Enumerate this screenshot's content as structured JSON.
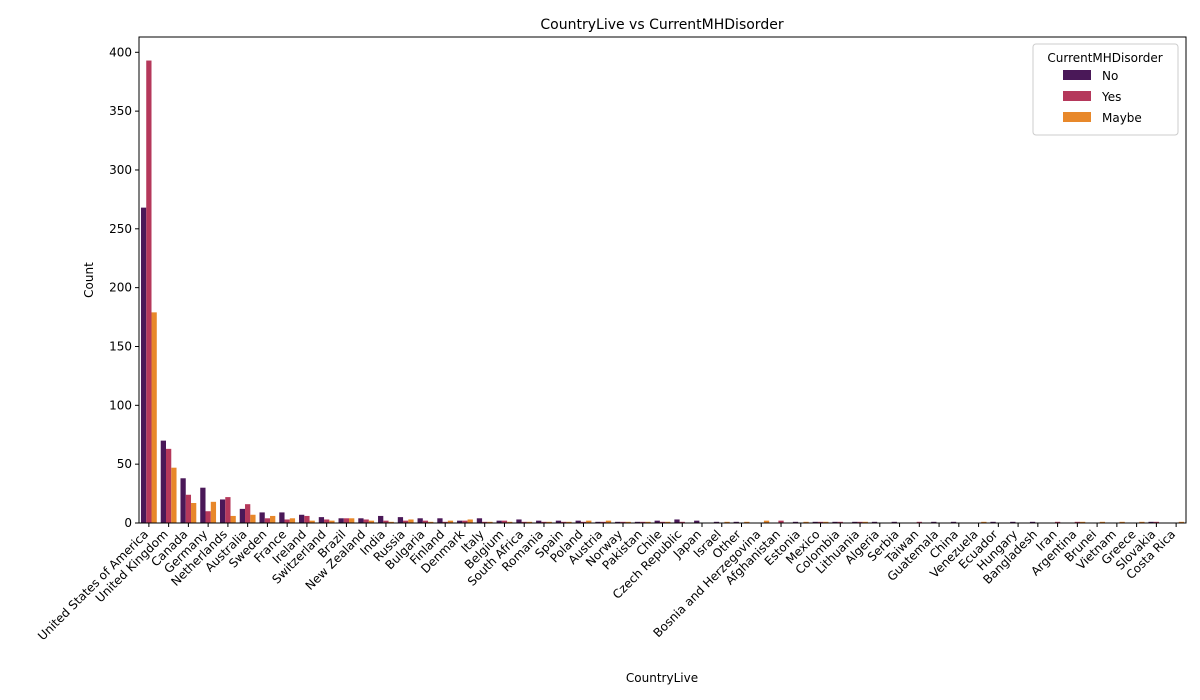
{
  "chart_data": {
    "type": "bar",
    "title": "CountryLive vs CurrentMHDisorder",
    "xlabel": "CountryLive",
    "ylabel": "Count",
    "ylim": [
      0,
      413
    ],
    "yticks": [
      0,
      50,
      100,
      150,
      200,
      250,
      300,
      350,
      400
    ],
    "legend": {
      "title": "CurrentMHDisorder",
      "placement": "top-right"
    },
    "grid": false,
    "categories": [
      "United States of America",
      "United Kingdom",
      "Canada",
      "Germany",
      "Netherlands",
      "Australia",
      "Sweden",
      "France",
      "Ireland",
      "Switzerland",
      "Brazil",
      "New Zealand",
      "India",
      "Russia",
      "Bulgaria",
      "Finland",
      "Denmark",
      "Italy",
      "Belgium",
      "South Africa",
      "Romania",
      "Spain",
      "Poland",
      "Austria",
      "Norway",
      "Pakistan",
      "Chile",
      "Czech Republic",
      "Japan",
      "Israel",
      "Other",
      "Bosnia and Herzegovina",
      "Afghanistan",
      "Estonia",
      "Mexico",
      "Colombia",
      "Lithuania",
      "Algeria",
      "Serbia",
      "Taiwan",
      "Guatemala",
      "China",
      "Venezuela",
      "Ecuador",
      "Hungary",
      "Bangladesh",
      "Iran",
      "Argentina",
      "Brunei",
      "Vietnam",
      "Greece",
      "Slovakia",
      "Costa Rica"
    ],
    "series": [
      {
        "name": "No",
        "color": "#4a1858",
        "values": [
          268,
          70,
          38,
          30,
          20,
          12,
          9,
          9,
          7,
          5,
          4,
          4,
          6,
          5,
          4,
          4,
          2,
          4,
          2,
          3,
          2,
          2,
          2,
          1,
          1,
          1,
          2,
          3,
          2,
          1,
          1,
          0,
          0,
          1,
          1,
          1,
          1,
          1,
          1,
          0,
          1,
          1,
          0,
          1,
          1,
          1,
          0,
          0,
          0,
          0,
          0,
          1,
          0
        ]
      },
      {
        "name": "Yes",
        "color": "#b5385b",
        "values": [
          393,
          63,
          24,
          10,
          22,
          16,
          4,
          3,
          6,
          3,
          4,
          3,
          2,
          2,
          2,
          1,
          2,
          1,
          2,
          1,
          1,
          1,
          1,
          1,
          1,
          1,
          1,
          1,
          0,
          0,
          0,
          0,
          2,
          0,
          1,
          1,
          1,
          0,
          0,
          1,
          0,
          0,
          0,
          0,
          0,
          0,
          1,
          1,
          0,
          0,
          0,
          1,
          0
        ]
      },
      {
        "name": "Maybe",
        "color": "#e8882a",
        "values": [
          179,
          47,
          17,
          18,
          6,
          7,
          6,
          4,
          2,
          2,
          4,
          2,
          1,
          3,
          1,
          2,
          3,
          1,
          1,
          1,
          1,
          1,
          2,
          2,
          1,
          1,
          1,
          0,
          0,
          1,
          1,
          2,
          0,
          1,
          1,
          0,
          1,
          0,
          0,
          0,
          0,
          0,
          1,
          0,
          0,
          0,
          0,
          1,
          1,
          1,
          1,
          0,
          1
        ]
      }
    ]
  }
}
